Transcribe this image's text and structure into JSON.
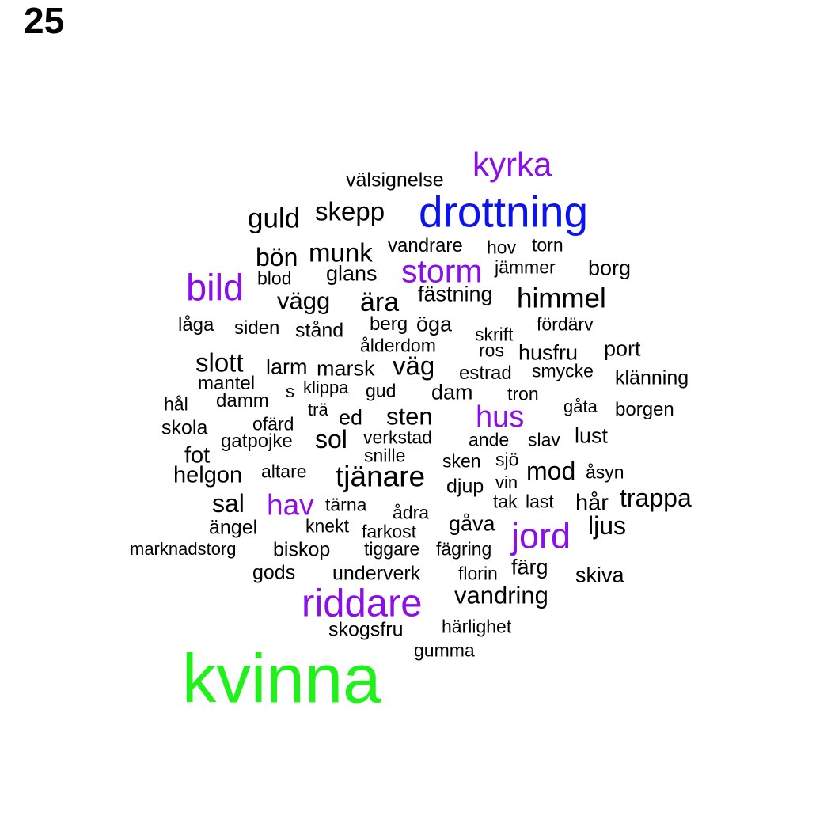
{
  "page_number": "25",
  "colors": {
    "black": "#000000",
    "purple": "#8b0fe8",
    "blue": "#0a14f0",
    "green": "#22f01a"
  },
  "words": [
    {
      "text": "kyrka",
      "color": "purple"
    },
    {
      "text": "välsignelse",
      "color": "black"
    },
    {
      "text": "drottning",
      "color": "blue"
    },
    {
      "text": "guld",
      "color": "black"
    },
    {
      "text": "skepp",
      "color": "black"
    },
    {
      "text": "vandrare",
      "color": "black"
    },
    {
      "text": "hov",
      "color": "black"
    },
    {
      "text": "torn",
      "color": "black"
    },
    {
      "text": "bön",
      "color": "black"
    },
    {
      "text": "munk",
      "color": "black"
    },
    {
      "text": "storm",
      "color": "purple"
    },
    {
      "text": "jämmer",
      "color": "black"
    },
    {
      "text": "borg",
      "color": "black"
    },
    {
      "text": "bild",
      "color": "purple"
    },
    {
      "text": "blod",
      "color": "black"
    },
    {
      "text": "glans",
      "color": "black"
    },
    {
      "text": "vägg",
      "color": "black"
    },
    {
      "text": "ära",
      "color": "black"
    },
    {
      "text": "fästning",
      "color": "black"
    },
    {
      "text": "himmel",
      "color": "black"
    },
    {
      "text": "låga",
      "color": "black"
    },
    {
      "text": "siden",
      "color": "black"
    },
    {
      "text": "stånd",
      "color": "black"
    },
    {
      "text": "berg",
      "color": "black"
    },
    {
      "text": "öga",
      "color": "black"
    },
    {
      "text": "skrift",
      "color": "black"
    },
    {
      "text": "fördärv",
      "color": "black"
    },
    {
      "text": "ålderdom",
      "color": "black"
    },
    {
      "text": "ros",
      "color": "black"
    },
    {
      "text": "husfru",
      "color": "black"
    },
    {
      "text": "port",
      "color": "black"
    },
    {
      "text": "slott",
      "color": "black"
    },
    {
      "text": "larm",
      "color": "black"
    },
    {
      "text": "marsk",
      "color": "black"
    },
    {
      "text": "väg",
      "color": "black"
    },
    {
      "text": "estrad",
      "color": "black"
    },
    {
      "text": "smycke",
      "color": "black"
    },
    {
      "text": "klänning",
      "color": "black"
    },
    {
      "text": "mantel",
      "color": "black"
    },
    {
      "text": "s",
      "color": "black"
    },
    {
      "text": "klippa",
      "color": "black"
    },
    {
      "text": "gud",
      "color": "black"
    },
    {
      "text": "dam",
      "color": "black"
    },
    {
      "text": "tron",
      "color": "black"
    },
    {
      "text": "hål",
      "color": "black"
    },
    {
      "text": "damm",
      "color": "black"
    },
    {
      "text": "trä",
      "color": "black"
    },
    {
      "text": "ed",
      "color": "black"
    },
    {
      "text": "sten",
      "color": "black"
    },
    {
      "text": "hus",
      "color": "purple"
    },
    {
      "text": "gåta",
      "color": "black"
    },
    {
      "text": "borgen",
      "color": "black"
    },
    {
      "text": "skola",
      "color": "black"
    },
    {
      "text": "ofärd",
      "color": "black"
    },
    {
      "text": "sol",
      "color": "black"
    },
    {
      "text": "verkstad",
      "color": "black"
    },
    {
      "text": "ande",
      "color": "black"
    },
    {
      "text": "slav",
      "color": "black"
    },
    {
      "text": "lust",
      "color": "black"
    },
    {
      "text": "gatpojke",
      "color": "black"
    },
    {
      "text": "fot",
      "color": "black"
    },
    {
      "text": "snille",
      "color": "black"
    },
    {
      "text": "sken",
      "color": "black"
    },
    {
      "text": "sjö",
      "color": "black"
    },
    {
      "text": "helgon",
      "color": "black"
    },
    {
      "text": "altare",
      "color": "black"
    },
    {
      "text": "tjänare",
      "color": "black"
    },
    {
      "text": "djup",
      "color": "black"
    },
    {
      "text": "mod",
      "color": "black"
    },
    {
      "text": "åsyn",
      "color": "black"
    },
    {
      "text": "vin",
      "color": "black"
    },
    {
      "text": "sal",
      "color": "black"
    },
    {
      "text": "hav",
      "color": "purple"
    },
    {
      "text": "tärna",
      "color": "black"
    },
    {
      "text": "tak",
      "color": "black"
    },
    {
      "text": "last",
      "color": "black"
    },
    {
      "text": "hår",
      "color": "black"
    },
    {
      "text": "trappa",
      "color": "black"
    },
    {
      "text": "ådra",
      "color": "black"
    },
    {
      "text": "ängel",
      "color": "black"
    },
    {
      "text": "knekt",
      "color": "black"
    },
    {
      "text": "farkost",
      "color": "black"
    },
    {
      "text": "gåva",
      "color": "black"
    },
    {
      "text": "jord",
      "color": "purple"
    },
    {
      "text": "ljus",
      "color": "black"
    },
    {
      "text": "marknadstorg",
      "color": "black"
    },
    {
      "text": "biskop",
      "color": "black"
    },
    {
      "text": "tiggare",
      "color": "black"
    },
    {
      "text": "fägring",
      "color": "black"
    },
    {
      "text": "gods",
      "color": "black"
    },
    {
      "text": "underverk",
      "color": "black"
    },
    {
      "text": "florin",
      "color": "black"
    },
    {
      "text": "färg",
      "color": "black"
    },
    {
      "text": "skiva",
      "color": "black"
    },
    {
      "text": "vandring",
      "color": "black"
    },
    {
      "text": "riddare",
      "color": "purple"
    },
    {
      "text": "härlighet",
      "color": "black"
    },
    {
      "text": "skogsfru",
      "color": "black"
    },
    {
      "text": "gumma",
      "color": "black"
    },
    {
      "text": "kvinna",
      "color": "green"
    }
  ]
}
